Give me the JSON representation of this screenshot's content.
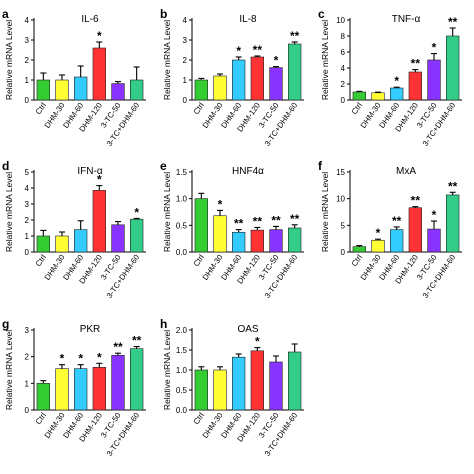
{
  "colors": [
    "#33cc33",
    "#ffff33",
    "#33ccff",
    "#ff3333",
    "#8833ff",
    "#33cc88"
  ],
  "chart_data": [
    {
      "type": "bar",
      "panel": "a",
      "title": "IL-6",
      "ylabel": "Relative mRNA Level",
      "ylim": [
        0,
        4
      ],
      "yticks": [
        0,
        1,
        2,
        3,
        4
      ],
      "categories": [
        "Ctrl",
        "DHM-30",
        "DHM-60",
        "DHM-120",
        "3-TC-50",
        "3-TC+DHM-60"
      ],
      "values": [
        1.0,
        1.0,
        1.15,
        2.6,
        0.82,
        1.0
      ],
      "errors": [
        0.35,
        0.25,
        0.55,
        0.3,
        0.1,
        0.65
      ],
      "significance": [
        "",
        "",
        "",
        "*",
        "",
        ""
      ]
    },
    {
      "type": "bar",
      "panel": "b",
      "title": "IL-8",
      "ylabel": "Relative mRNA Level",
      "ylim": [
        0,
        4
      ],
      "yticks": [
        0,
        1,
        2,
        3,
        4
      ],
      "categories": [
        "Ctrl",
        "DHM-30",
        "DHM-60",
        "DHM-120",
        "3-TC-50",
        "3-TC+DHM-60"
      ],
      "values": [
        1.0,
        1.2,
        2.0,
        2.15,
        1.62,
        2.8
      ],
      "errors": [
        0.08,
        0.1,
        0.15,
        0.05,
        0.05,
        0.1
      ],
      "significance": [
        "",
        "",
        "*",
        "**",
        "*",
        "**"
      ]
    },
    {
      "type": "bar",
      "panel": "c",
      "title": "TNF-α",
      "ylabel": "Relative mRNA Level",
      "ylim": [
        0,
        10
      ],
      "yticks": [
        0,
        2,
        4,
        6,
        8,
        10
      ],
      "categories": [
        "Ctrl",
        "DHM-30",
        "DHM-60",
        "DHM-120",
        "3-TC-50",
        "3-TC+DHM-60"
      ],
      "values": [
        1.0,
        0.9,
        1.5,
        3.5,
        5.0,
        8.0
      ],
      "errors": [
        0.08,
        0.08,
        0.1,
        0.3,
        0.8,
        1.0
      ],
      "significance": [
        "",
        "",
        "*",
        "**",
        "*",
        "**"
      ]
    },
    {
      "type": "bar",
      "panel": "d",
      "title": "IFN-α",
      "ylabel": "Relative mRNA Level",
      "ylim": [
        0,
        5
      ],
      "yticks": [
        0,
        1,
        2,
        3,
        4,
        5
      ],
      "categories": [
        "Ctrl",
        "DHM-30",
        "DHM-60",
        "DHM-120",
        "3-TC-50",
        "3-TC+DHM-60"
      ],
      "values": [
        1.0,
        1.0,
        1.4,
        3.85,
        1.7,
        2.05
      ],
      "errors": [
        0.35,
        0.25,
        0.55,
        0.3,
        0.2,
        0.05
      ],
      "significance": [
        "",
        "",
        "",
        "*",
        "",
        "*"
      ]
    },
    {
      "type": "bar",
      "panel": "e",
      "title": "HNF4α",
      "ylabel": "Relative mRNA Level",
      "ylim": [
        0,
        1.5
      ],
      "yticks": [
        0.0,
        0.5,
        1.0,
        1.5
      ],
      "categories": [
        "Ctrl",
        "DHM-30",
        "DHM-60",
        "DHM-120",
        "3-TC-50",
        "3-TC+DHM-60"
      ],
      "values": [
        1.0,
        0.68,
        0.37,
        0.41,
        0.42,
        0.45
      ],
      "errors": [
        0.1,
        0.1,
        0.05,
        0.05,
        0.06,
        0.06
      ],
      "significance": [
        "",
        "*",
        "**",
        "**",
        "**",
        "**"
      ]
    },
    {
      "type": "bar",
      "panel": "f",
      "title": "MxA",
      "ylabel": "Relative mRNA Level",
      "ylim": [
        0,
        15
      ],
      "yticks": [
        0,
        5,
        10,
        15
      ],
      "categories": [
        "Ctrl",
        "DHM-30",
        "DHM-60",
        "DHM-120",
        "3-TC-50",
        "3-TC+DHM-60"
      ],
      "values": [
        1.0,
        2.2,
        4.2,
        8.3,
        4.3,
        10.7
      ],
      "errors": [
        0.2,
        0.2,
        0.5,
        0.2,
        1.5,
        0.5
      ],
      "significance": [
        "",
        "*",
        "**",
        "**",
        "*",
        "**"
      ]
    },
    {
      "type": "bar",
      "panel": "g",
      "title": "PKR",
      "ylabel": "Relative mRNA Level",
      "ylim": [
        0,
        3
      ],
      "yticks": [
        0,
        1,
        2,
        3
      ],
      "categories": [
        "Ctrl",
        "DHM-30",
        "DHM-60",
        "DHM-120",
        "3-TC-50",
        "3-TC+DHM-60"
      ],
      "values": [
        1.0,
        1.55,
        1.55,
        1.6,
        2.05,
        2.3
      ],
      "errors": [
        0.1,
        0.15,
        0.15,
        0.15,
        0.08,
        0.08
      ],
      "significance": [
        "",
        "*",
        "*",
        "*",
        "**",
        "**"
      ]
    },
    {
      "type": "bar",
      "panel": "h",
      "title": "OAS",
      "ylabel": "Relative mRNA Level",
      "ylim": [
        0,
        2
      ],
      "yticks": [
        0.0,
        0.5,
        1.0,
        1.5,
        2.0
      ],
      "categories": [
        "Ctrl",
        "DHM-30",
        "DHM-60",
        "DHM-120",
        "3-TC-50",
        "3-TC+DHM-60"
      ],
      "values": [
        1.0,
        1.0,
        1.32,
        1.48,
        1.2,
        1.45
      ],
      "errors": [
        0.08,
        0.08,
        0.08,
        0.08,
        0.15,
        0.2
      ],
      "significance": [
        "",
        "",
        "",
        "*",
        "",
        ""
      ]
    }
  ]
}
